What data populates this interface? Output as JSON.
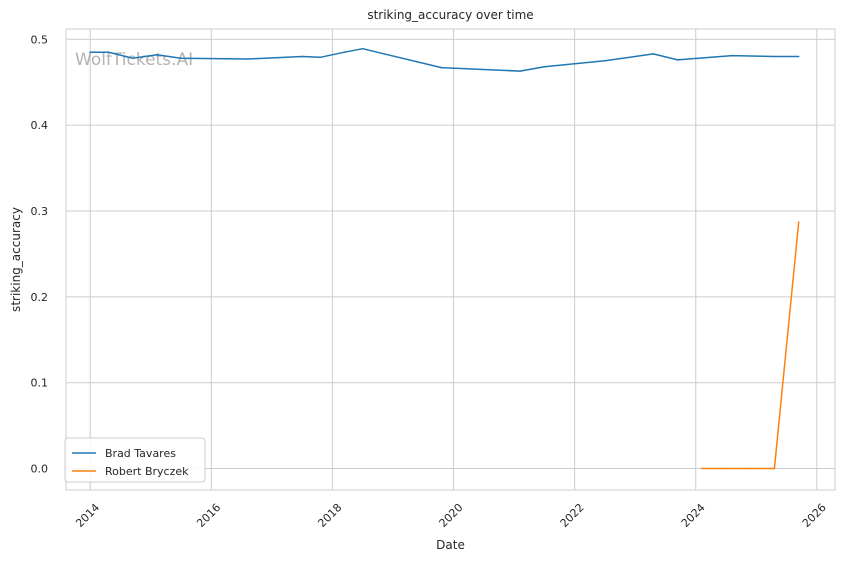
{
  "chart_data": {
    "type": "line",
    "title": "striking_accuracy over time",
    "xlabel": "Date",
    "ylabel": "striking_accuracy",
    "watermark": "WolfTickets.AI",
    "xlim": [
      2013.6,
      2026.3
    ],
    "ylim": [
      -0.025,
      0.512
    ],
    "x_ticks": [
      2014,
      2016,
      2018,
      2020,
      2022,
      2024,
      2026
    ],
    "y_ticks": [
      0.0,
      0.1,
      0.2,
      0.3,
      0.4,
      0.5
    ],
    "y_tick_labels": [
      "0.0",
      "0.1",
      "0.2",
      "0.3",
      "0.4",
      "0.5"
    ],
    "grid": true,
    "legend": "lower-left",
    "series": [
      {
        "name": "Brad Tavares",
        "color": "#1f77b4",
        "points": [
          {
            "x": 2014.0,
            "y": 0.485
          },
          {
            "x": 2014.3,
            "y": 0.485
          },
          {
            "x": 2014.7,
            "y": 0.478
          },
          {
            "x": 2015.1,
            "y": 0.482
          },
          {
            "x": 2015.5,
            "y": 0.478
          },
          {
            "x": 2016.6,
            "y": 0.477
          },
          {
            "x": 2017.5,
            "y": 0.48
          },
          {
            "x": 2017.8,
            "y": 0.479
          },
          {
            "x": 2018.2,
            "y": 0.485
          },
          {
            "x": 2018.5,
            "y": 0.489
          },
          {
            "x": 2019.8,
            "y": 0.467
          },
          {
            "x": 2021.1,
            "y": 0.463
          },
          {
            "x": 2021.5,
            "y": 0.468
          },
          {
            "x": 2022.5,
            "y": 0.475
          },
          {
            "x": 2023.3,
            "y": 0.483
          },
          {
            "x": 2023.7,
            "y": 0.476
          },
          {
            "x": 2024.6,
            "y": 0.481
          },
          {
            "x": 2025.3,
            "y": 0.48
          },
          {
            "x": 2025.7,
            "y": 0.48
          }
        ]
      },
      {
        "name": "Robert Bryczek",
        "color": "#ff7f0e",
        "points": [
          {
            "x": 2024.1,
            "y": 0.0
          },
          {
            "x": 2024.5,
            "y": 0.0
          },
          {
            "x": 2024.9,
            "y": 0.0
          },
          {
            "x": 2025.3,
            "y": 0.0
          },
          {
            "x": 2025.7,
            "y": 0.287
          }
        ]
      }
    ]
  }
}
